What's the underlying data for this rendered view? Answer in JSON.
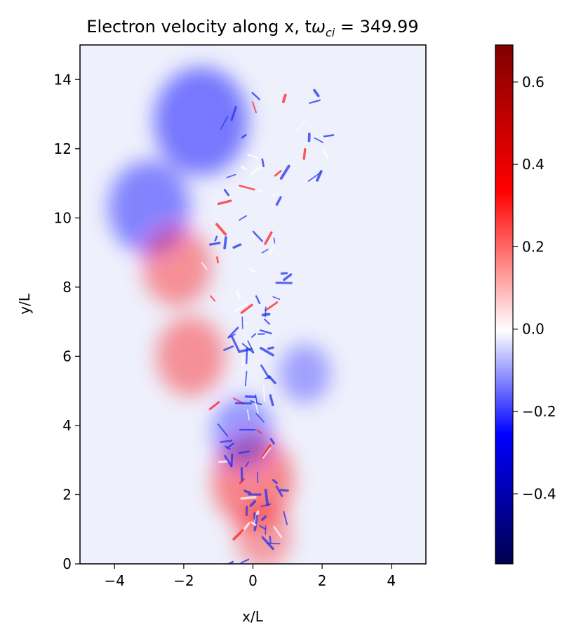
{
  "chart_data": {
    "type": "heatmap",
    "title_prefix": "Electron velocity along x, t",
    "title_symbol": "ω",
    "title_subscript": "ci",
    "title_suffix": " = 349.99",
    "xlabel": "x/L",
    "ylabel": "y/L",
    "xlim": [
      -5,
      5
    ],
    "ylim": [
      0,
      15
    ],
    "xticks": [
      -4,
      -2,
      0,
      2,
      4
    ],
    "xtick_labels": [
      "−4",
      "−2",
      "0",
      "2",
      "4"
    ],
    "yticks": [
      0,
      2,
      4,
      6,
      8,
      10,
      12,
      14
    ],
    "ytick_labels": [
      "0",
      "2",
      "4",
      "6",
      "8",
      "10",
      "12",
      "14"
    ],
    "colorbar": {
      "colormap": "seismic",
      "min": -0.57,
      "max": 0.69,
      "ticks": [
        -0.4,
        -0.2,
        0.0,
        0.2,
        0.4,
        0.6
      ],
      "tick_labels": [
        "−0.4",
        "−0.2",
        "0.0",
        "0.2",
        "0.4",
        "0.6"
      ]
    },
    "colors": {
      "negative_extreme": "#00004d",
      "negative": "#0000ff",
      "zero": "#ffffff",
      "positive": "#ff0000",
      "positive_extreme": "#800000"
    },
    "features": [
      {
        "x": -1.5,
        "y": 12.8,
        "value": -0.25
      },
      {
        "x": -3.0,
        "y": 10.3,
        "value": -0.2
      },
      {
        "x": -2.2,
        "y": 8.6,
        "value": 0.15
      },
      {
        "x": -1.8,
        "y": 6.0,
        "value": 0.15
      },
      {
        "x": 0.0,
        "y": 2.4,
        "value": 0.2
      },
      {
        "x": -0.3,
        "y": 3.8,
        "value": -0.12
      },
      {
        "x": 1.5,
        "y": 5.5,
        "value": -0.08
      },
      {
        "x": 0.3,
        "y": 0.8,
        "value": 0.1
      }
    ]
  }
}
